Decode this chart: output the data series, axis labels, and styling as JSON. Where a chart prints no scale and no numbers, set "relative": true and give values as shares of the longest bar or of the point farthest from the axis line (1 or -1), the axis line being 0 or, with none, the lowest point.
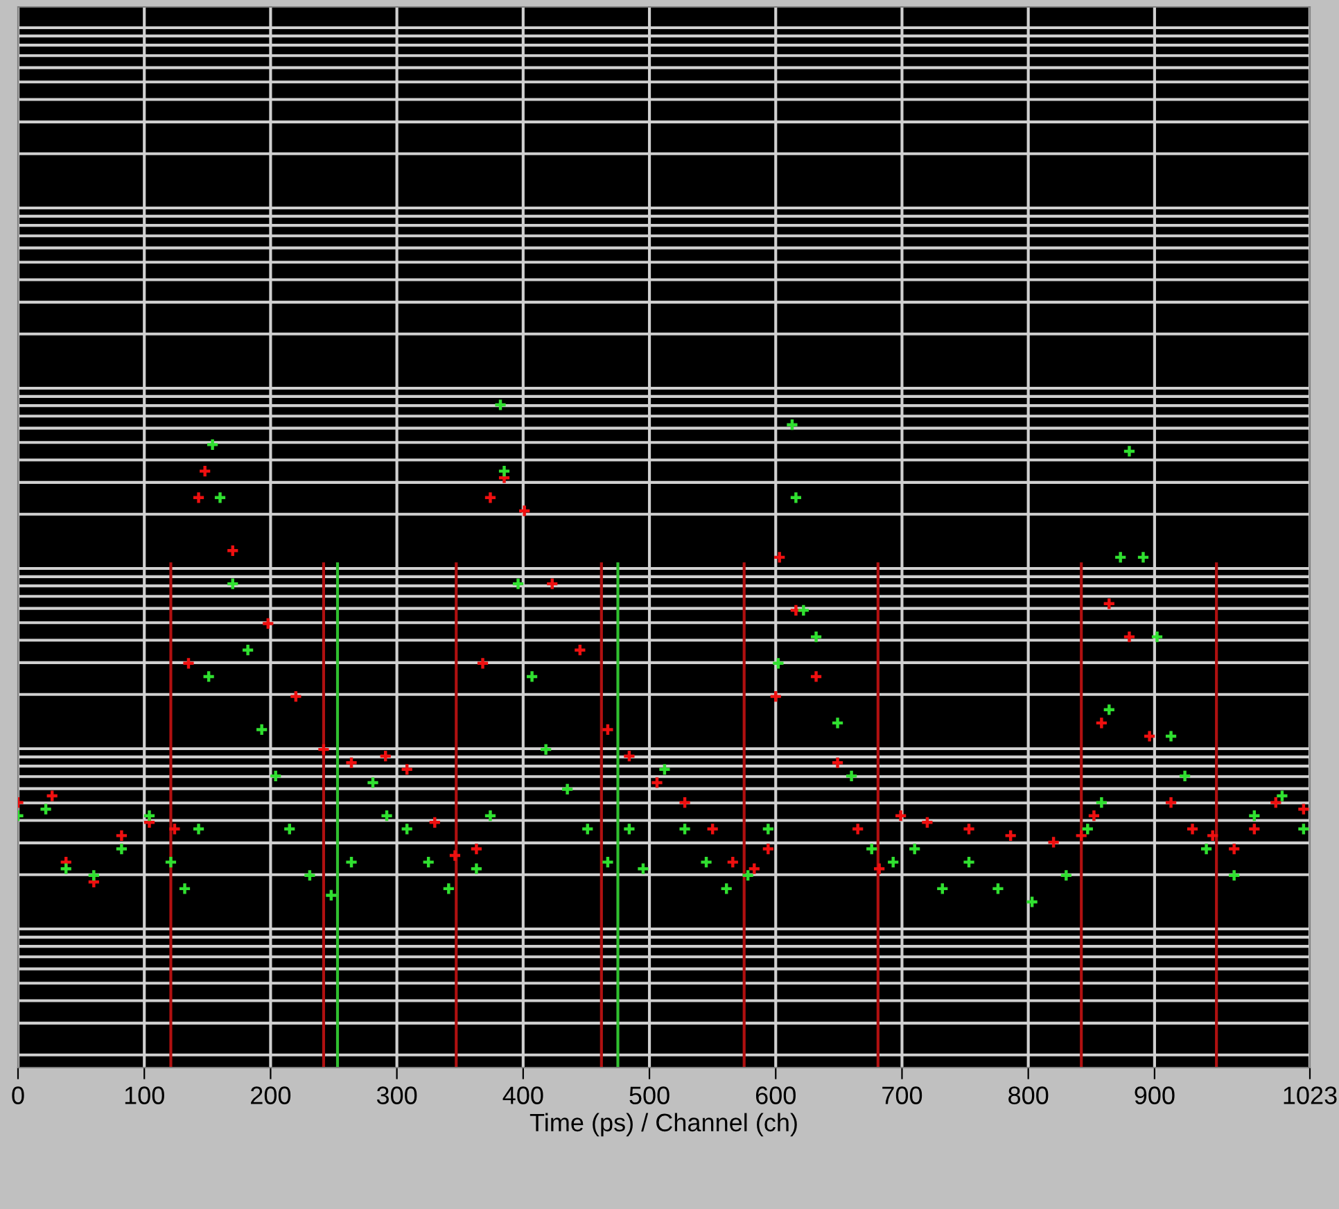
{
  "chart_data": {
    "type": "scatter",
    "xlabel": "Time (ps) / Channel (ch)",
    "relative": true,
    "marker": "cross",
    "grid": true,
    "tick_labels": "x",
    "xlim": [
      0,
      1023
    ],
    "xticks": [
      0,
      100,
      200,
      300,
      400,
      500,
      600,
      700,
      800,
      900,
      1023
    ],
    "series": [
      {
        "color": "#ee1010",
        "x": [
          0,
          27,
          38,
          60,
          82,
          104,
          124,
          135,
          143,
          148,
          170,
          198,
          220,
          242,
          264,
          291,
          308,
          330,
          346,
          363,
          368,
          374,
          385,
          401,
          423,
          445,
          467,
          484,
          506,
          528,
          550,
          566,
          583,
          594,
          600,
          603,
          616,
          632,
          649,
          665,
          682,
          699,
          720,
          753,
          786,
          820,
          842,
          852,
          858,
          864,
          880,
          896,
          913,
          930,
          946,
          963,
          979,
          996,
          1018
        ],
        "values": [
          0.4,
          0.41,
          0.31,
          0.28,
          0.35,
          0.37,
          0.36,
          0.61,
          0.86,
          0.9,
          0.78,
          0.67,
          0.56,
          0.48,
          0.46,
          0.47,
          0.45,
          0.37,
          0.32,
          0.33,
          0.61,
          0.86,
          0.89,
          0.84,
          0.73,
          0.63,
          0.51,
          0.47,
          0.43,
          0.4,
          0.36,
          0.31,
          0.3,
          0.33,
          0.56,
          0.77,
          0.69,
          0.59,
          0.46,
          0.36,
          0.3,
          0.38,
          0.37,
          0.36,
          0.35,
          0.34,
          0.35,
          0.38,
          0.52,
          0.7,
          0.65,
          0.5,
          0.4,
          0.36,
          0.35,
          0.33,
          0.36,
          0.4,
          0.39
        ]
      },
      {
        "color": "#30e030",
        "x": [
          0,
          22,
          38,
          60,
          82,
          104,
          121,
          132,
          143,
          151,
          154,
          160,
          170,
          182,
          193,
          204,
          215,
          231,
          248,
          264,
          281,
          292,
          308,
          325,
          341,
          363,
          374,
          382,
          385,
          396,
          407,
          418,
          435,
          451,
          467,
          484,
          495,
          512,
          528,
          545,
          561,
          578,
          594,
          602,
          613,
          616,
          622,
          632,
          649,
          660,
          676,
          693,
          710,
          732,
          753,
          776,
          803,
          830,
          847,
          858,
          864,
          873,
          880,
          891,
          902,
          913,
          924,
          941,
          963,
          979,
          1001,
          1018
        ],
        "values": [
          0.38,
          0.39,
          0.3,
          0.29,
          0.33,
          0.38,
          0.31,
          0.27,
          0.36,
          0.59,
          0.94,
          0.86,
          0.73,
          0.63,
          0.51,
          0.44,
          0.36,
          0.29,
          0.26,
          0.31,
          0.43,
          0.38,
          0.36,
          0.31,
          0.27,
          0.3,
          0.38,
          1.0,
          0.9,
          0.73,
          0.59,
          0.48,
          0.42,
          0.36,
          0.31,
          0.36,
          0.3,
          0.45,
          0.36,
          0.31,
          0.27,
          0.29,
          0.36,
          0.61,
          0.97,
          0.86,
          0.69,
          0.65,
          0.52,
          0.44,
          0.33,
          0.31,
          0.33,
          0.27,
          0.31,
          0.27,
          0.25,
          0.29,
          0.36,
          0.4,
          0.54,
          0.77,
          0.93,
          0.77,
          0.65,
          0.5,
          0.44,
          0.33,
          0.29,
          0.38,
          0.41,
          0.36
        ]
      }
    ],
    "ref_lines": [
      {
        "axis": "x",
        "value": 121,
        "color": "#b01010"
      },
      {
        "axis": "x",
        "value": 242,
        "color": "#b01010"
      },
      {
        "axis": "x",
        "value": 253,
        "color": "#30c030"
      },
      {
        "axis": "x",
        "value": 347,
        "color": "#b01010"
      },
      {
        "axis": "x",
        "value": 462,
        "color": "#b01010"
      },
      {
        "axis": "x",
        "value": 475,
        "color": "#30c030"
      },
      {
        "axis": "x",
        "value": 575,
        "color": "#b01010"
      },
      {
        "axis": "x",
        "value": 681,
        "color": "#b01010"
      },
      {
        "axis": "x",
        "value": 842,
        "color": "#b01010"
      },
      {
        "axis": "x",
        "value": 949,
        "color": "#b01010"
      }
    ]
  }
}
